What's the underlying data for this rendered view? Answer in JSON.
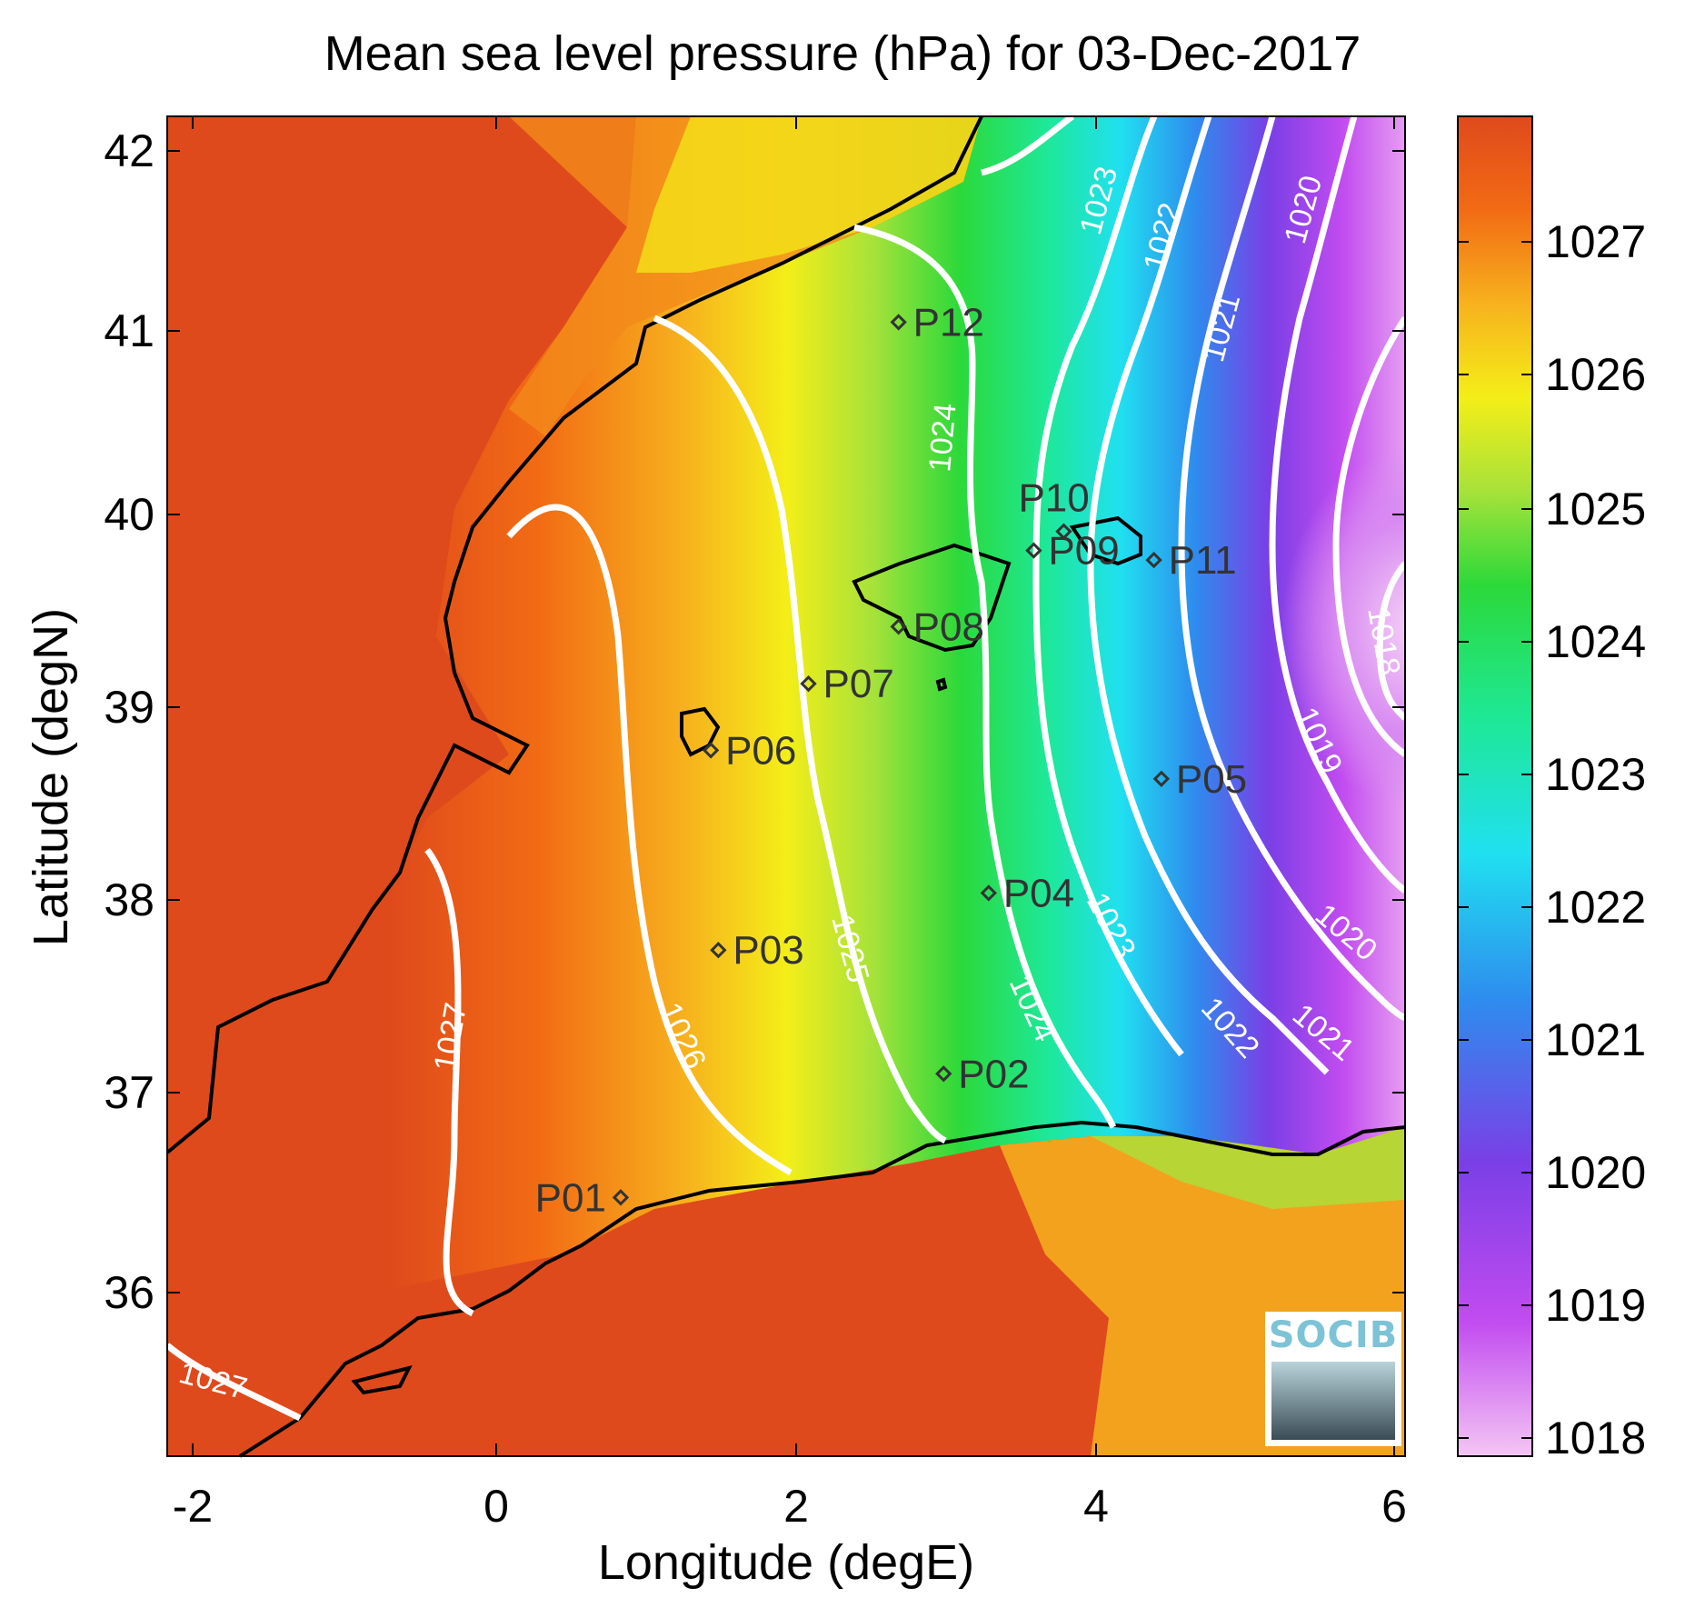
{
  "title": "Mean sea level pressure (hPa) for 03-Dec-2017",
  "xlabel": "Longitude (degE)",
  "ylabel": "Latitude (degN)",
  "x_ticks": [
    "-2",
    "0",
    "2",
    "4",
    "6"
  ],
  "y_ticks": [
    "42",
    "41",
    "40",
    "39",
    "38",
    "37",
    "36"
  ],
  "colorbar": {
    "ticks": [
      "1027",
      "1026",
      "1025",
      "1024",
      "1023",
      "1022",
      "1021",
      "1020",
      "1019",
      "1018"
    ],
    "range": [
      1017.8,
      1027.9
    ],
    "colors": [
      "#f4c6f4",
      "#c24cf0",
      "#7a3fe6",
      "#2e8cee",
      "#20e0f0",
      "#1ee897",
      "#2cd93a",
      "#a7e23a",
      "#f4ee18",
      "#f7b21e",
      "#f26b14",
      "#df4a1c"
    ]
  },
  "contour_labels": [
    "1027",
    "1027",
    "1026",
    "1025",
    "1024",
    "1024",
    "1023",
    "1023",
    "1022",
    "1022",
    "1021",
    "1021",
    "1020",
    "1020",
    "1019",
    "1018"
  ],
  "stations": [
    {
      "id": "P01",
      "lon": 0.85,
      "lat": 36.5
    },
    {
      "id": "P02",
      "lon": 3.0,
      "lat": 37.15
    },
    {
      "id": "P03",
      "lon": 1.5,
      "lat": 37.8
    },
    {
      "id": "P04",
      "lon": 3.3,
      "lat": 38.1
    },
    {
      "id": "P05",
      "lon": 4.45,
      "lat": 38.7
    },
    {
      "id": "P06",
      "lon": 1.45,
      "lat": 38.85
    },
    {
      "id": "P07",
      "lon": 2.1,
      "lat": 39.2
    },
    {
      "id": "P08",
      "lon": 2.7,
      "lat": 39.5
    },
    {
      "id": "P09",
      "lon": 3.6,
      "lat": 39.9
    },
    {
      "id": "P10",
      "lon": 3.8,
      "lat": 40.0
    },
    {
      "id": "P11",
      "lon": 4.4,
      "lat": 39.85
    },
    {
      "id": "P12",
      "lon": 2.7,
      "lat": 41.1
    }
  ],
  "logo": {
    "text": "SOCIB"
  }
}
